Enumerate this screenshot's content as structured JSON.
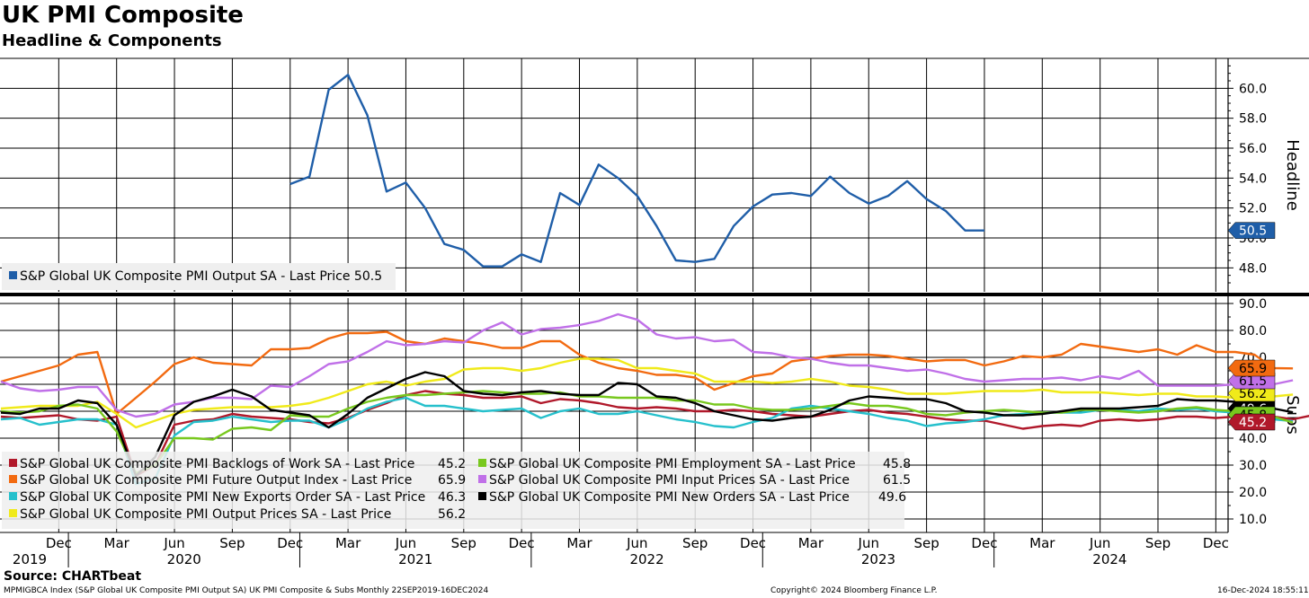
{
  "header": {
    "title": "UK PMI Composite",
    "subtitle": "Headline & Components"
  },
  "footer": {
    "source": "Source: CHARTbeat",
    "description": "MPMIGBCA Index (S&P Global UK Composite PMI Output SA) UK PMI Composite & Subs  Monthly 22SEP2019-16DEC2024",
    "copyright": "Copyright© 2024 Bloomberg Finance L.P.",
    "timestamp": "16-Dec-2024 18:55:11"
  },
  "chart_data": [
    {
      "type": "line",
      "panel": "top",
      "ylabel": "Headline",
      "ylim": [
        46.4,
        62.0
      ],
      "yticks": [
        "60.0",
        "58.0",
        "56.0",
        "54.0",
        "52.0",
        "50.0",
        "48.0"
      ],
      "grid": true,
      "legend_position": "bottom-left",
      "series": [
        {
          "name": "S&P Global UK Composite PMI Output SA - Last Price 50.5",
          "color": "#1f5ea8",
          "last_value_label": "50.5",
          "start": "2020-12",
          "values": [
            53.6,
            54.1,
            59.9,
            60.9,
            58.2,
            53.1,
            53.7,
            52.0,
            49.6,
            49.2,
            48.1,
            48.1,
            48.9,
            48.4,
            53.0,
            52.2,
            54.9,
            54.0,
            52.8,
            50.8,
            48.5,
            48.4,
            48.6,
            50.8,
            52.1,
            52.9,
            53.0,
            52.8,
            54.1,
            53.0,
            52.3,
            52.8,
            53.8,
            52.6,
            51.8,
            50.5,
            50.5
          ]
        }
      ]
    },
    {
      "type": "line",
      "panel": "bottom",
      "ylabel": "Subs",
      "ylim": [
        5,
        92
      ],
      "yticks": [
        "90.0",
        "80.0",
        "70.0",
        "60.0",
        "50.0",
        "40.0",
        "30.0",
        "20.0",
        "10.0"
      ],
      "grid": true,
      "legend_position": "bottom-left",
      "x_start": "2019-09",
      "x_axis": {
        "month_labels": [
          "Dec",
          "Mar",
          "Jun",
          "Sep",
          "Dec",
          "Mar",
          "Jun",
          "Sep",
          "Dec",
          "Mar",
          "Jun",
          "Sep",
          "Dec",
          "Mar",
          "Jun",
          "Sep",
          "Dec",
          "Mar",
          "Jun",
          "Sep",
          "Dec"
        ],
        "year_labels": [
          "2019",
          "2020",
          "2021",
          "2022",
          "2023",
          "2024"
        ]
      },
      "series": [
        {
          "name": "S&P Global UK Composite PMI Backlogs of Work SA - Last Price",
          "value_text": "45.2",
          "color": "#b0182a",
          "last_value_label": "45.2",
          "values": [
            48.0,
            47.5,
            48.0,
            48.5,
            47.0,
            46.5,
            48.0,
            26.0,
            30.0,
            45.0,
            46.5,
            47.0,
            49.0,
            48.0,
            47.5,
            47.0,
            46.0,
            45.5,
            47.5,
            50.5,
            53.0,
            56.0,
            57.5,
            56.5,
            56.0,
            55.0,
            55.0,
            55.5,
            53.0,
            54.5,
            54.0,
            53.0,
            51.5,
            51.0,
            51.5,
            51.0,
            50.0,
            50.0,
            50.5,
            50.0,
            49.0,
            48.5,
            48.0,
            49.0,
            50.0,
            50.5,
            49.5,
            49.0,
            48.0,
            47.0,
            46.5,
            46.5,
            45.0,
            43.5,
            44.5,
            45.0,
            44.5,
            46.5,
            47.0,
            46.5,
            47.0,
            48.0,
            48.0,
            47.5,
            48.0,
            48.0,
            48.0,
            47.0,
            48.5,
            47.0,
            48.5,
            47.0,
            46.5,
            45.2
          ]
        },
        {
          "name": "S&P Global UK Composite PMI Future Output Index - Last Price",
          "value_text": "65.9",
          "color": "#f26a10",
          "last_value_label": "65.9",
          "values": [
            61.0,
            63.0,
            65.0,
            67.0,
            71.0,
            72.0,
            49.0,
            55.0,
            61.0,
            67.5,
            70.0,
            68.0,
            67.5,
            67.0,
            73.0,
            73.0,
            73.5,
            77.0,
            79.0,
            79.0,
            79.5,
            76.0,
            75.0,
            77.0,
            76.0,
            75.0,
            73.5,
            73.5,
            76.0,
            76.0,
            71.0,
            68.0,
            66.0,
            65.0,
            63.5,
            63.5,
            62.5,
            58.0,
            60.5,
            63.0,
            64.0,
            68.5,
            69.5,
            70.5,
            71.0,
            71.0,
            70.5,
            69.5,
            68.5,
            69.0,
            69.0,
            67.0,
            68.5,
            70.5,
            70.0,
            71.0,
            75.0,
            74.0,
            73.0,
            72.0,
            73.0,
            71.0,
            74.5,
            72.0,
            72.0,
            71.0,
            66.0,
            65.9
          ]
        },
        {
          "name": "S&P Global UK Composite PMI New Exports Order SA - Last Price",
          "value_text": "46.3",
          "color": "#26c0cc",
          "last_value_label": "46.3",
          "values": [
            47.0,
            47.5,
            45.0,
            46.0,
            47.0,
            47.0,
            45.0,
            23.0,
            25.0,
            41.0,
            46.0,
            46.5,
            48.0,
            47.0,
            46.0,
            46.5,
            46.5,
            44.0,
            47.0,
            51.0,
            53.5,
            55.0,
            52.0,
            52.0,
            51.0,
            50.0,
            50.5,
            51.0,
            47.5,
            50.0,
            51.0,
            49.0,
            49.0,
            50.0,
            48.5,
            47.0,
            46.0,
            44.5,
            44.0,
            46.0,
            47.5,
            51.0,
            52.0,
            51.0,
            50.0,
            49.0,
            47.5,
            46.5,
            44.5,
            45.5,
            46.0,
            47.0,
            48.5,
            49.0,
            49.5,
            49.5,
            49.5,
            50.5,
            50.5,
            50.0,
            51.0,
            50.5,
            51.0,
            50.0,
            49.5,
            49.0,
            47.0,
            46.3
          ]
        },
        {
          "name": "S&P Global UK Composite PMI Output Prices SA - Last Price",
          "value_text": "56.2",
          "color": "#f0ea1a",
          "last_value_label": "56.2",
          "values": [
            51.0,
            51.5,
            52.0,
            52.0,
            52.0,
            53.5,
            49.0,
            44.0,
            46.5,
            49.0,
            50.5,
            51.0,
            51.5,
            51.5,
            51.5,
            52.0,
            53.0,
            55.0,
            57.5,
            60.0,
            61.0,
            59.5,
            61.0,
            62.0,
            65.5,
            66.0,
            66.0,
            65.0,
            66.0,
            68.0,
            69.5,
            69.5,
            69.0,
            66.0,
            66.0,
            65.0,
            64.0,
            61.0,
            61.0,
            61.0,
            60.5,
            61.0,
            62.0,
            61.0,
            59.5,
            59.0,
            58.0,
            56.5,
            56.5,
            56.5,
            57.0,
            57.5,
            57.5,
            57.5,
            58.0,
            57.0,
            57.0,
            57.0,
            56.5,
            56.0,
            56.5,
            56.5,
            55.5,
            55.5,
            55.0,
            55.5,
            55.5,
            56.2
          ]
        },
        {
          "name": "S&P Global UK Composite PMI Employment SA - Last Price",
          "value_text": "45.8",
          "color": "#78c81e",
          "last_value_label": "45.8",
          "values": [
            50.0,
            49.5,
            50.0,
            52.0,
            52.5,
            51.0,
            42.5,
            27.0,
            30.0,
            40.0,
            40.0,
            39.5,
            43.5,
            44.0,
            43.0,
            48.5,
            48.0,
            48.0,
            51.0,
            53.5,
            55.0,
            56.0,
            56.0,
            56.5,
            57.0,
            57.5,
            57.0,
            56.5,
            56.5,
            57.0,
            55.5,
            55.5,
            55.0,
            55.0,
            55.0,
            54.0,
            54.0,
            52.5,
            52.5,
            51.0,
            50.5,
            50.5,
            51.0,
            52.0,
            53.0,
            52.0,
            52.0,
            51.0,
            49.0,
            48.5,
            49.5,
            50.0,
            50.5,
            50.0,
            49.5,
            49.5,
            50.5,
            50.5,
            50.0,
            49.5,
            50.0,
            51.0,
            51.5,
            50.5,
            50.0,
            49.0,
            48.0,
            45.8
          ]
        },
        {
          "name": "S&P Global UK Composite PMI Input Prices SA - Last Price",
          "value_text": "61.5",
          "color": "#c070e8",
          "last_value_label": "61.5",
          "values": [
            61.0,
            58.5,
            57.5,
            58.0,
            59.0,
            59.0,
            50.5,
            48.0,
            49.0,
            52.5,
            53.5,
            55.0,
            55.0,
            54.5,
            59.5,
            59.0,
            63.0,
            67.5,
            68.5,
            72.0,
            76.0,
            74.5,
            75.0,
            76.0,
            75.5,
            80.0,
            83.0,
            78.5,
            80.5,
            81.0,
            82.0,
            83.5,
            86.0,
            84.0,
            78.5,
            77.0,
            77.5,
            76.0,
            76.5,
            72.0,
            71.5,
            70.0,
            69.5,
            68.0,
            67.0,
            67.0,
            66.0,
            65.0,
            65.5,
            64.0,
            62.0,
            61.0,
            61.5,
            62.0,
            62.0,
            62.5,
            61.5,
            63.0,
            62.0,
            65.0,
            59.5,
            59.5,
            59.5,
            59.5,
            60.0,
            59.0,
            60.0,
            61.5
          ]
        },
        {
          "name": "S&P Global UK Composite PMI New Orders SA - Last Price",
          "value_text": "49.6",
          "color": "#000000",
          "last_value_label": "49.6",
          "values": [
            49.5,
            49.0,
            51.0,
            51.0,
            54.0,
            53.0,
            45.0,
            26.0,
            33.0,
            48.5,
            53.5,
            55.5,
            58.0,
            55.5,
            50.5,
            49.5,
            48.5,
            44.0,
            49.0,
            55.0,
            58.5,
            62.0,
            64.5,
            63.0,
            57.5,
            56.5,
            56.0,
            57.0,
            57.5,
            56.5,
            56.0,
            56.0,
            60.5,
            60.0,
            55.5,
            55.0,
            53.0,
            50.0,
            48.5,
            47.0,
            46.5,
            47.5,
            48.0,
            50.5,
            54.0,
            55.5,
            55.0,
            54.5,
            54.5,
            53.0,
            50.0,
            49.5,
            48.5,
            48.5,
            49.0,
            50.0,
            51.0,
            51.0,
            51.0,
            51.5,
            52.0,
            54.5,
            54.0,
            54.0,
            53.5,
            52.5,
            51.0,
            49.6
          ]
        }
      ]
    }
  ]
}
